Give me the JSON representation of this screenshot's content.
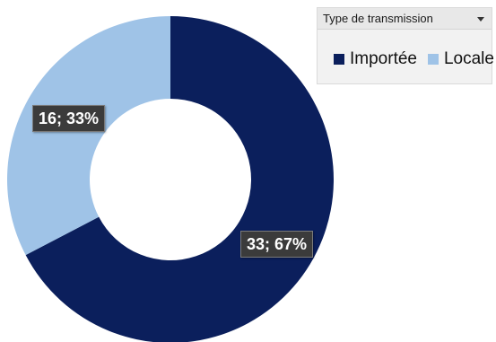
{
  "chart_data": {
    "type": "pie",
    "variant": "donut",
    "legend_title": "Type de transmission",
    "legend_position": "top-right",
    "categories": [
      "Importée",
      "Locale"
    ],
    "values": [
      33,
      16
    ],
    "percents": [
      67,
      33
    ],
    "data_labels": [
      "33; 67%",
      "16; 33%"
    ],
    "colors": [
      "#0b1f5c",
      "#9fc3e7"
    ]
  }
}
